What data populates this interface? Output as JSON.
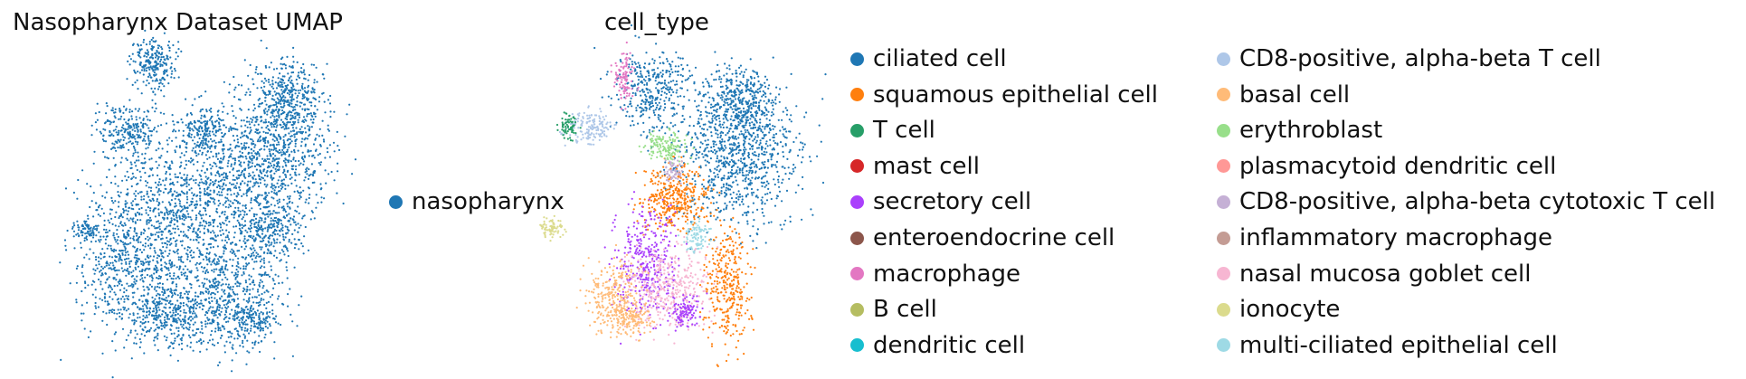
{
  "chart_data": [
    {
      "type": "scatter",
      "title": "Nasopharynx Dataset UMAP",
      "legend": {
        "placement": "right",
        "entries": [
          {
            "name": "nasopharynx",
            "color": "#1f77b4"
          }
        ]
      },
      "grid": false,
      "axes_visible": false
    },
    {
      "type": "scatter",
      "title": "cell_type",
      "grid": false,
      "axes_visible": false,
      "legend": {
        "placement": "right",
        "columns": 2,
        "entries": [
          {
            "name": "ciliated cell",
            "color": "#1f77b4"
          },
          {
            "name": "squamous epithelial cell",
            "color": "#ff7f0e"
          },
          {
            "name": "T cell",
            "color": "#279e68"
          },
          {
            "name": "mast cell",
            "color": "#d62728"
          },
          {
            "name": "secretory cell",
            "color": "#aa40fc"
          },
          {
            "name": "enteroendocrine cell",
            "color": "#8c564b"
          },
          {
            "name": "macrophage",
            "color": "#e377c2"
          },
          {
            "name": "B cell",
            "color": "#b5bd61"
          },
          {
            "name": "dendritic cell",
            "color": "#17becf"
          },
          {
            "name": "CD8-positive, alpha-beta T cell",
            "color": "#aec7e8"
          },
          {
            "name": "basal cell",
            "color": "#ffbb78"
          },
          {
            "name": "erythroblast",
            "color": "#98df8a"
          },
          {
            "name": "plasmacytoid dendritic cell",
            "color": "#ff9896"
          },
          {
            "name": "CD8-positive, alpha-beta cytotoxic T cell",
            "color": "#c5b0d5"
          },
          {
            "name": "inflammatory macrophage",
            "color": "#c49c94"
          },
          {
            "name": "nasal mucosa goblet cell",
            "color": "#f7b6d2"
          },
          {
            "name": "ionocyte",
            "color": "#dbdb8d"
          },
          {
            "name": "multi-ciliated epithelial cell",
            "color": "#9edae5"
          }
        ]
      }
    }
  ]
}
